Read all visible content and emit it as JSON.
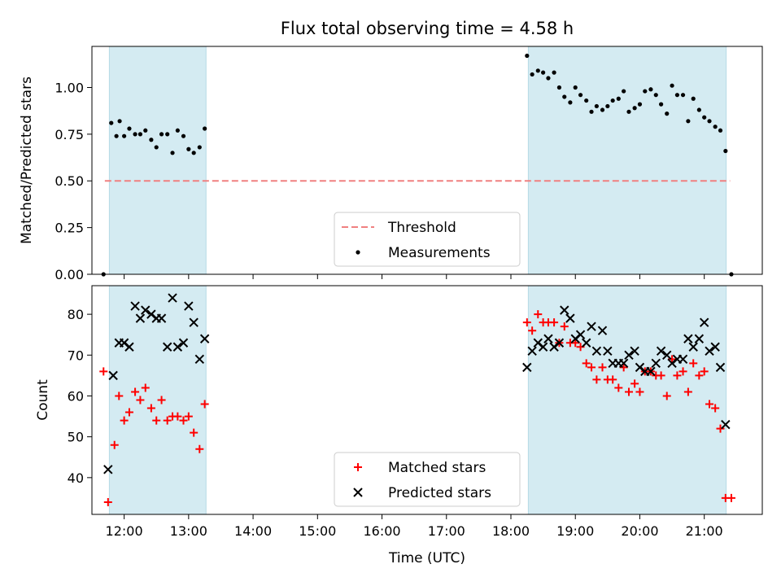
{
  "chart_data": {
    "type": "scatter",
    "title": "Flux total observing time = 4.58 h",
    "xlabel": "Time (UTC)",
    "xlim": [
      11.5,
      21.9
    ],
    "x_ticks": [
      12,
      13,
      14,
      15,
      16,
      17,
      18,
      19,
      20,
      21
    ],
    "x_tick_labels": [
      "12:00",
      "13:00",
      "14:00",
      "15:00",
      "16:00",
      "17:00",
      "18:00",
      "19:00",
      "20:00",
      "21:00"
    ],
    "observing_windows": [
      [
        11.77,
        13.27
      ],
      [
        18.27,
        21.34
      ]
    ],
    "colors": {
      "window": "#d4ebf2",
      "threshold": "#f08080",
      "measurements": "#000000",
      "matched": "#ff0000",
      "predicted": "#000000"
    },
    "panels": [
      {
        "ylabel": "Matched/Predicted stars",
        "ylim": [
          0.0,
          1.22
        ],
        "y_ticks": [
          0.0,
          0.25,
          0.5,
          0.75,
          1.0
        ],
        "y_tick_labels": [
          "0.00",
          "0.25",
          "0.50",
          "0.75",
          "1.00"
        ],
        "legend_placement": "lower-center",
        "threshold": {
          "name": "Threshold",
          "value": 0.5,
          "x_range": [
            11.7,
            21.4
          ]
        },
        "series": [
          {
            "name": "Measurements",
            "marker": "dot",
            "x": [
              11.68,
              11.8,
              11.88,
              11.93,
              12.0,
              12.08,
              12.17,
              12.25,
              12.33,
              12.42,
              12.5,
              12.58,
              12.67,
              12.75,
              12.83,
              12.92,
              13.0,
              13.08,
              13.17,
              13.25,
              18.25,
              18.33,
              18.42,
              18.5,
              18.58,
              18.67,
              18.75,
              18.83,
              18.92,
              19.0,
              19.08,
              19.17,
              19.25,
              19.33,
              19.42,
              19.5,
              19.58,
              19.67,
              19.75,
              19.83,
              19.92,
              20.0,
              20.08,
              20.17,
              20.25,
              20.33,
              20.42,
              20.5,
              20.58,
              20.67,
              20.75,
              20.83,
              20.92,
              21.0,
              21.08,
              21.17,
              21.25,
              21.33,
              21.42
            ],
            "y": [
              0.0,
              0.81,
              0.74,
              0.82,
              0.74,
              0.78,
              0.75,
              0.75,
              0.77,
              0.72,
              0.68,
              0.75,
              0.75,
              0.65,
              0.77,
              0.74,
              0.67,
              0.65,
              0.68,
              0.78,
              1.17,
              1.07,
              1.09,
              1.08,
              1.05,
              1.08,
              1.0,
              0.95,
              0.92,
              1.0,
              0.96,
              0.93,
              0.87,
              0.9,
              0.88,
              0.9,
              0.93,
              0.94,
              0.98,
              0.87,
              0.89,
              0.91,
              0.98,
              0.99,
              0.96,
              0.91,
              0.86,
              1.01,
              0.96,
              0.96,
              0.82,
              0.94,
              0.88,
              0.84,
              0.82,
              0.79,
              0.77,
              0.66,
              0.0
            ]
          }
        ]
      },
      {
        "ylabel": "Count",
        "ylim": [
          31,
          87
        ],
        "y_ticks": [
          40,
          50,
          60,
          70,
          80
        ],
        "y_tick_labels": [
          "40",
          "50",
          "60",
          "70",
          "80"
        ],
        "legend_placement": "lower-center",
        "series": [
          {
            "name": "Matched stars",
            "marker": "plus",
            "x": [
              11.68,
              11.75,
              11.85,
              11.92,
              12.0,
              12.08,
              12.17,
              12.25,
              12.33,
              12.42,
              12.5,
              12.58,
              12.67,
              12.75,
              12.83,
              12.92,
              13.0,
              13.08,
              13.17,
              13.25,
              18.25,
              18.33,
              18.42,
              18.5,
              18.58,
              18.67,
              18.75,
              18.83,
              18.92,
              19.0,
              19.08,
              19.17,
              19.25,
              19.33,
              19.42,
              19.5,
              19.58,
              19.67,
              19.75,
              19.83,
              19.92,
              20.0,
              20.08,
              20.17,
              20.25,
              20.33,
              20.42,
              20.5,
              20.58,
              20.67,
              20.75,
              20.83,
              20.92,
              21.0,
              21.08,
              21.17,
              21.25,
              21.33,
              21.42
            ],
            "y": [
              66,
              34,
              48,
              60,
              54,
              56,
              61,
              59,
              62,
              57,
              54,
              59,
              54,
              55,
              55,
              54,
              55,
              51,
              47,
              58,
              78,
              76,
              80,
              78,
              78,
              78,
              73,
              77,
              73,
              73,
              72,
              68,
              67,
              64,
              67,
              64,
              64,
              62,
              67,
              61,
              63,
              61,
              66,
              66,
              65,
              65,
              60,
              69,
              65,
              66,
              61,
              68,
              65,
              66,
              58,
              57,
              52,
              35,
              35
            ]
          },
          {
            "name": "Predicted stars",
            "marker": "x",
            "x": [
              11.75,
              11.83,
              11.92,
              12.0,
              12.08,
              12.17,
              12.25,
              12.33,
              12.42,
              12.5,
              12.58,
              12.67,
              12.75,
              12.83,
              12.92,
              13.0,
              13.08,
              13.17,
              13.25,
              18.25,
              18.33,
              18.42,
              18.5,
              18.58,
              18.67,
              18.75,
              18.83,
              18.92,
              19.0,
              19.08,
              19.17,
              19.25,
              19.33,
              19.42,
              19.5,
              19.58,
              19.67,
              19.75,
              19.83,
              19.92,
              20.0,
              20.08,
              20.17,
              20.25,
              20.33,
              20.42,
              20.5,
              20.58,
              20.67,
              20.75,
              20.83,
              20.92,
              21.0,
              21.08,
              21.17,
              21.25,
              21.33
            ],
            "y": [
              42,
              65,
              73,
              73,
              72,
              82,
              79,
              81,
              80,
              79,
              79,
              72,
              84,
              72,
              73,
              82,
              78,
              69,
              74,
              67,
              71,
              73,
              72,
              74,
              72,
              73,
              81,
              79,
              74,
              75,
              73,
              77,
              71,
              76,
              71,
              68,
              68,
              68,
              70,
              71,
              67,
              66,
              66,
              68,
              71,
              70,
              68,
              69,
              69,
              74,
              72,
              74,
              78,
              71,
              72,
              67,
              53
            ]
          }
        ]
      }
    ]
  }
}
